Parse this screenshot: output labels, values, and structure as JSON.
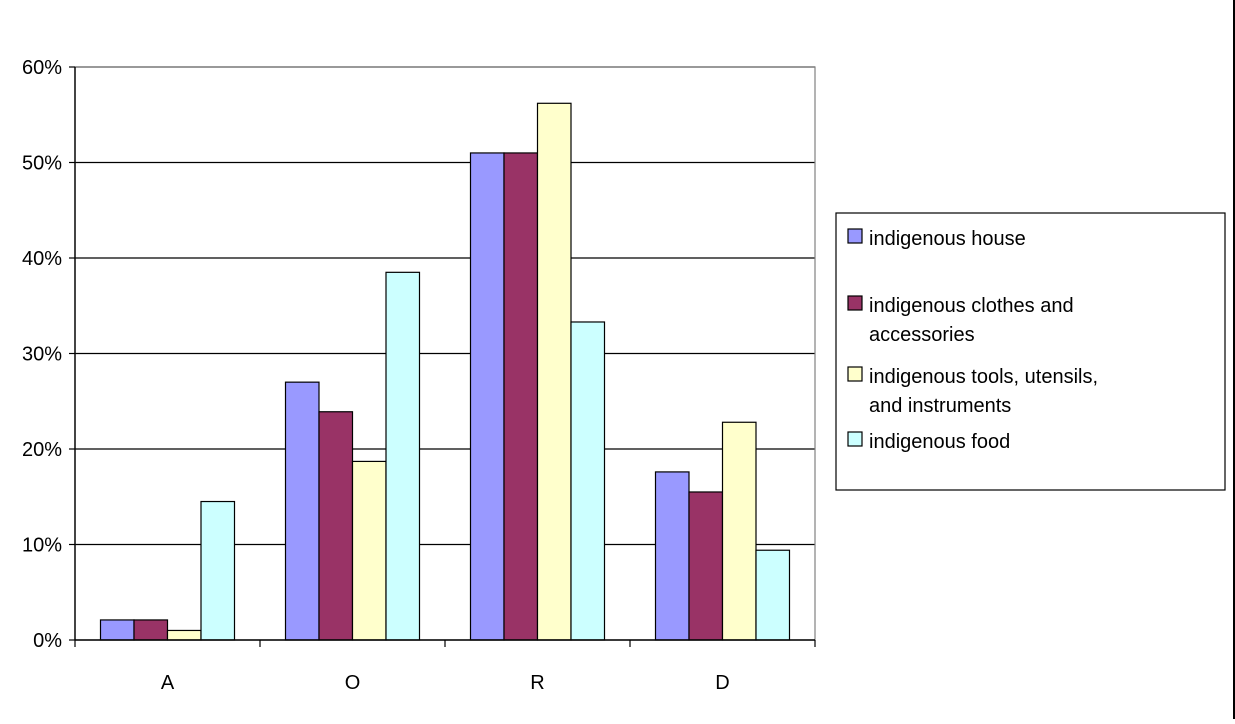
{
  "chart_data": {
    "type": "bar",
    "title": "",
    "xlabel": "",
    "ylabel": "",
    "categories": [
      "A",
      "O",
      "R",
      "D"
    ],
    "ylim": [
      0,
      0.6
    ],
    "yticks": [
      0,
      0.1,
      0.2,
      0.3,
      0.4,
      0.5,
      0.6
    ],
    "ytick_labels": [
      "0%",
      "10%",
      "20%",
      "30%",
      "40%",
      "50%",
      "60%"
    ],
    "grid": true,
    "legend_position": "right",
    "series": [
      {
        "name": "indigenous house",
        "color": "#9999ff",
        "values": [
          0.021,
          0.27,
          0.51,
          0.176
        ]
      },
      {
        "name": "indigenous clothes and accessories",
        "color": "#993366",
        "values": [
          0.021,
          0.239,
          0.51,
          0.155
        ]
      },
      {
        "name": "indigenous tools, utensils, and instruments",
        "color": "#ffffcc",
        "values": [
          0.01,
          0.187,
          0.562,
          0.228
        ]
      },
      {
        "name": "indigenous food",
        "color": "#ccffff",
        "values": [
          0.145,
          0.385,
          0.333,
          0.094
        ]
      }
    ]
  }
}
